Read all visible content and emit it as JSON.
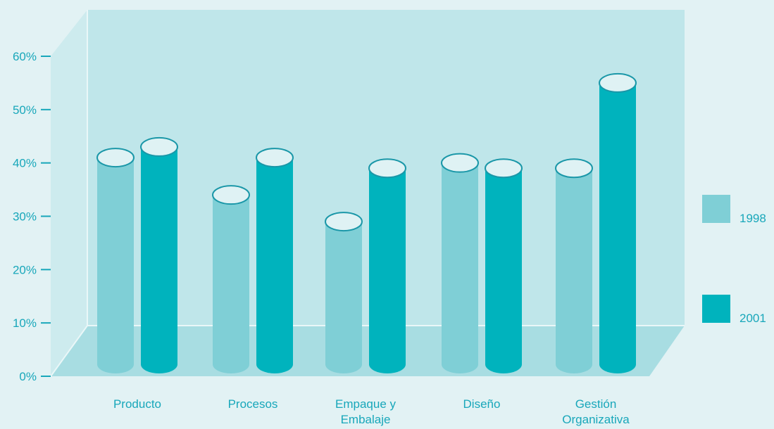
{
  "chart_data": {
    "type": "bar",
    "title": "",
    "xlabel": "",
    "ylabel": "",
    "ylim": [
      0,
      60
    ],
    "yticks": [
      0,
      10,
      20,
      30,
      40,
      50,
      60
    ],
    "ytick_labels": [
      "0%",
      "10%",
      "20%",
      "30%",
      "40%",
      "50%",
      "60%"
    ],
    "categories": [
      "Producto",
      "Procesos",
      "Empaque y Embalaje",
      "Diseño",
      "Gestión Organizativa"
    ],
    "category_label_lines": [
      [
        "Producto"
      ],
      [
        "Procesos"
      ],
      [
        "Empaque y",
        "Embalaje"
      ],
      [
        "Diseño"
      ],
      [
        "Gestión",
        "Organizativa"
      ]
    ],
    "series": [
      {
        "name": "1998",
        "values": [
          41,
          34,
          29,
          40,
          39
        ],
        "color": "#7fcfd6"
      },
      {
        "name": "2001",
        "values": [
          43,
          41,
          39,
          39,
          55
        ],
        "color": "#00b3bd"
      }
    ],
    "legend": {
      "placement": "right"
    },
    "grid": false,
    "style": "3d-cylinder"
  },
  "colors": {
    "background": "#e2f2f4",
    "back_wall": "#bfe6ea",
    "side_wall": "#cdebee",
    "floor": "#a8dde2",
    "cap_fill": "#dff2f4",
    "text": "#18a7ba",
    "outline": "#1a97a8"
  }
}
